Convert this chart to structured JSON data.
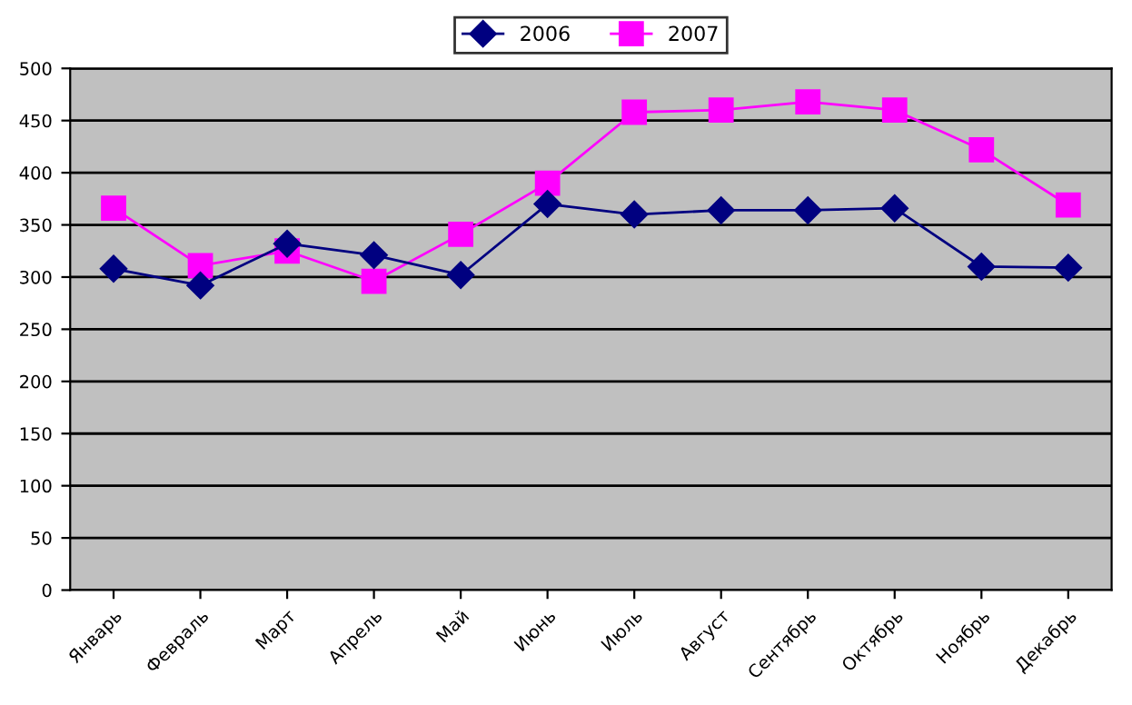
{
  "chart_data": {
    "type": "line",
    "categories": [
      "Январь",
      "Февраль",
      "Март",
      "Апрель",
      "Май",
      "Июнь",
      "Июль",
      "Август",
      "Сентябрь",
      "Октябрь",
      "Ноябрь",
      "Декабрь"
    ],
    "series": [
      {
        "name": "2006",
        "color": "#000080",
        "marker": "diamond",
        "values": [
          308,
          292,
          332,
          321,
          302,
          370,
          360,
          364,
          364,
          366,
          310,
          309
        ]
      },
      {
        "name": "2007",
        "color": "#ff00ff",
        "marker": "square",
        "values": [
          366,
          311,
          325,
          296,
          341,
          390,
          458,
          460,
          468,
          460,
          422,
          369
        ]
      }
    ],
    "ylim": [
      0,
      500
    ],
    "yticks": [
      0,
      50,
      100,
      150,
      200,
      250,
      300,
      350,
      400,
      450,
      500
    ],
    "grid": "y",
    "legend": "top",
    "line_style": "solid"
  }
}
